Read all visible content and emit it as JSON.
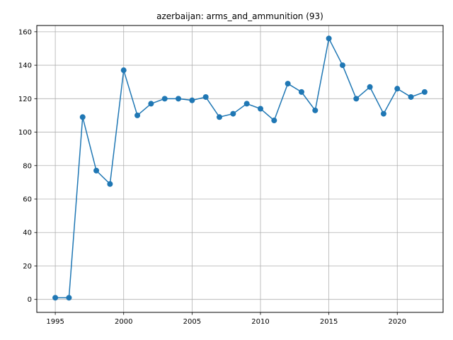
{
  "chart_data": {
    "type": "line",
    "title": "azerbaijan: arms_and_ammunition (93)",
    "xlabel": "",
    "ylabel": "",
    "x": [
      1995,
      1996,
      1997,
      1998,
      1999,
      2000,
      2001,
      2002,
      2003,
      2004,
      2005,
      2006,
      2007,
      2008,
      2009,
      2010,
      2011,
      2012,
      2013,
      2014,
      2015,
      2016,
      2017,
      2018,
      2019,
      2020,
      2021,
      2022
    ],
    "series": [
      {
        "values": [
          1,
          1,
          109,
          77,
          69,
          137,
          110,
          117,
          120,
          120,
          119,
          121,
          109,
          111,
          117,
          114,
          107,
          129,
          124,
          113,
          156,
          140,
          120,
          127,
          111,
          126,
          121,
          124
        ],
        "color": "#1f77b4",
        "marker": "circle"
      }
    ],
    "xlim": [
      1993.65,
      2023.35
    ],
    "ylim": [
      -7.75,
      163.75
    ],
    "xticks": [
      1995,
      2000,
      2005,
      2010,
      2015,
      2020
    ],
    "yticks": [
      0,
      20,
      40,
      60,
      80,
      100,
      120,
      140,
      160
    ],
    "grid": true,
    "legend": "none"
  }
}
